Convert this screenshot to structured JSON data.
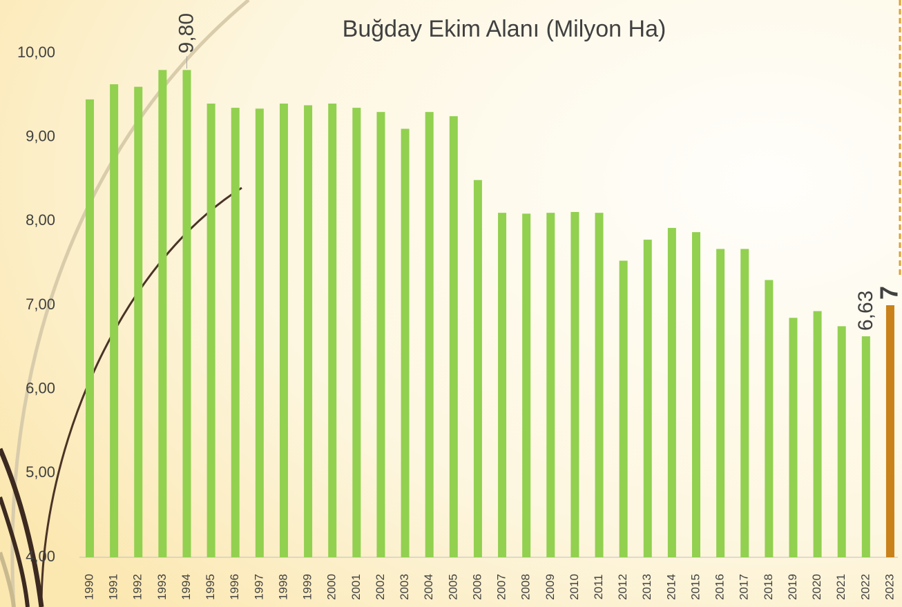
{
  "chart_data": {
    "type": "bar",
    "title": "Buğday Ekim Alanı (Milyon Ha)",
    "categories": [
      "1990",
      "1991",
      "1992",
      "1993",
      "1994",
      "1995",
      "1996",
      "1997",
      "1998",
      "1999",
      "2000",
      "2001",
      "2002",
      "2003",
      "2004",
      "2005",
      "2006",
      "2007",
      "2008",
      "2009",
      "2010",
      "2011",
      "2012",
      "2013",
      "2014",
      "2015",
      "2016",
      "2017",
      "2018",
      "2019",
      "2020",
      "2021",
      "2022",
      "2023"
    ],
    "values": [
      9.45,
      9.63,
      9.6,
      9.8,
      9.8,
      9.4,
      9.35,
      9.34,
      9.4,
      9.38,
      9.4,
      9.35,
      9.3,
      9.1,
      9.3,
      9.25,
      8.49,
      8.1,
      8.09,
      8.1,
      8.11,
      8.1,
      7.53,
      7.78,
      7.92,
      7.87,
      7.67,
      7.67,
      7.3,
      6.85,
      6.93,
      6.75,
      6.63,
      7
    ],
    "value_labels": [
      null,
      null,
      null,
      null,
      "9,80",
      null,
      null,
      null,
      null,
      null,
      null,
      null,
      null,
      null,
      null,
      null,
      null,
      null,
      null,
      null,
      null,
      null,
      null,
      null,
      null,
      null,
      null,
      null,
      null,
      null,
      null,
      null,
      "6,63",
      "7"
    ],
    "colors": [
      "#92d050",
      "#92d050",
      "#92d050",
      "#92d050",
      "#92d050",
      "#92d050",
      "#92d050",
      "#92d050",
      "#92d050",
      "#92d050",
      "#92d050",
      "#92d050",
      "#92d050",
      "#92d050",
      "#92d050",
      "#92d050",
      "#92d050",
      "#92d050",
      "#92d050",
      "#92d050",
      "#92d050",
      "#92d050",
      "#92d050",
      "#92d050",
      "#92d050",
      "#92d050",
      "#92d050",
      "#92d050",
      "#92d050",
      "#92d050",
      "#92d050",
      "#92d050",
      "#92d050",
      "#c98119"
    ],
    "ylim": [
      4,
      10
    ],
    "yticks": [
      {
        "value": 4,
        "label": "4,00"
      },
      {
        "value": 5,
        "label": "5,00"
      },
      {
        "value": 6,
        "label": "6,00"
      },
      {
        "value": 7,
        "label": "7,00"
      },
      {
        "value": 8,
        "label": "8,00"
      },
      {
        "value": 9,
        "label": "9,00"
      },
      {
        "value": 10,
        "label": "10,00"
      }
    ],
    "grid": false
  }
}
